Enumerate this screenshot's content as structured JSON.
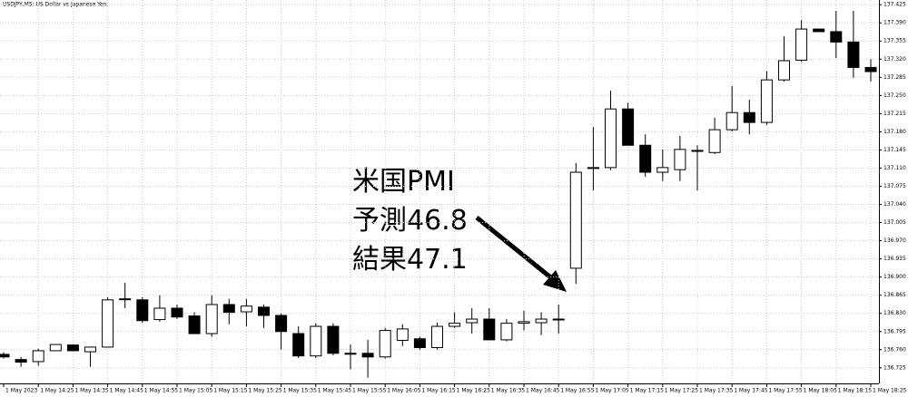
{
  "chart_data": {
    "type": "candlestick",
    "title": "USDJPY,M5:  US Dollar vs Japanese Yen",
    "categories": [
      "1 May 2023",
      null,
      "1 May 14:25",
      null,
      "1 May 14:35",
      null,
      "1 May 14:45",
      null,
      "1 May 14:55",
      null,
      "1 May 15:05",
      null,
      "1 May 15:15",
      null,
      "1 May 15:25",
      null,
      "1 May 15:35",
      null,
      "1 May 15:45",
      null,
      "1 May 15:55",
      null,
      "1 May 16:05",
      null,
      "1 May 16:15",
      null,
      "1 May 16:25",
      null,
      "1 May 16:35",
      null,
      "1 May 16:45",
      null,
      "1 May 16:55",
      null,
      "1 May 17:05",
      null,
      "1 May 17:15",
      null,
      "1 May 17:25",
      null,
      "1 May 17:35",
      null,
      "1 May 17:45",
      null,
      "1 May 17:55",
      null,
      "1 May 18:05",
      null,
      "1 May 18:15",
      null,
      "1 May 18:25"
    ],
    "open": [
      136.751,
      136.741,
      136.737,
      136.758,
      136.769,
      136.756,
      136.765,
      136.858,
      136.856,
      136.818,
      136.84,
      136.825,
      136.791,
      136.847,
      136.833,
      136.842,
      136.826,
      136.791,
      136.748,
      136.805,
      136.753,
      136.753,
      136.746,
      136.778,
      136.781,
      136.764,
      136.805,
      136.812,
      136.819,
      136.779,
      136.811,
      136.812,
      136.819,
      136.917,
      137.111,
      137.111,
      137.224,
      137.154,
      137.102,
      137.107,
      137.144,
      137.14,
      137.184,
      137.217,
      137.198,
      137.28,
      137.318,
      137.378,
      137.373,
      137.353,
      137.304
    ],
    "high": [
      136.755,
      136.746,
      136.762,
      136.77,
      136.77,
      136.765,
      136.861,
      136.889,
      136.861,
      136.865,
      136.847,
      136.832,
      136.865,
      136.858,
      136.858,
      136.847,
      136.83,
      136.805,
      136.811,
      136.811,
      136.77,
      136.779,
      136.802,
      136.809,
      136.785,
      136.812,
      136.832,
      136.84,
      136.84,
      136.819,
      136.835,
      136.832,
      136.847,
      137.12,
      137.189,
      137.259,
      137.236,
      137.175,
      137.146,
      137.172,
      137.154,
      137.207,
      137.268,
      137.242,
      137.297,
      137.364,
      137.395,
      137.378,
      137.413,
      137.413,
      137.32
    ],
    "low": [
      136.743,
      136.727,
      136.729,
      136.758,
      136.758,
      136.727,
      136.765,
      136.84,
      136.812,
      136.814,
      136.819,
      136.791,
      136.785,
      136.809,
      136.805,
      136.802,
      136.76,
      136.744,
      136.744,
      136.749,
      136.722,
      136.706,
      136.743,
      136.767,
      136.76,
      136.76,
      136.802,
      136.791,
      136.778,
      136.776,
      136.797,
      136.788,
      136.791,
      136.887,
      137.067,
      137.106,
      137.154,
      137.093,
      137.085,
      137.085,
      137.067,
      137.137,
      137.181,
      137.175,
      137.193,
      137.277,
      137.315,
      137.373,
      137.322,
      137.284,
      137.277
    ],
    "close": [
      136.746,
      136.736,
      136.758,
      136.77,
      136.758,
      136.765,
      136.856,
      136.858,
      136.816,
      136.84,
      136.823,
      136.791,
      136.847,
      136.832,
      136.844,
      136.826,
      136.795,
      136.748,
      136.805,
      136.753,
      136.753,
      136.746,
      136.797,
      136.8,
      136.764,
      136.805,
      136.811,
      136.819,
      136.779,
      136.811,
      136.814,
      136.819,
      136.819,
      137.102,
      137.111,
      137.224,
      137.154,
      137.102,
      137.111,
      137.146,
      137.144,
      137.184,
      137.217,
      137.198,
      137.28,
      137.317,
      137.378,
      137.373,
      137.353,
      137.304,
      137.296
    ],
    "up_color": "#ffffff",
    "down_color": "#000000",
    "ylim": [
      136.695,
      137.434
    ],
    "yticks": [
      136.725,
      {
        "value": 136.76,
        "label": "136.760"
      },
      136.795,
      {
        "value": 136.83,
        "label": "136.830"
      },
      136.865,
      {
        "value": 136.9,
        "label": "136.900"
      },
      136.935,
      {
        "value": 136.97,
        "label": "136.970"
      },
      137.005,
      {
        "value": 137.04,
        "label": "137.040"
      },
      137.075,
      {
        "value": 137.11,
        "label": "137.110"
      },
      137.145,
      {
        "value": 137.18,
        "label": "137.180"
      },
      137.215,
      {
        "value": 137.25,
        "label": "137.250"
      },
      137.285,
      {
        "value": 137.32,
        "label": "137.320"
      },
      137.355,
      {
        "value": 137.39,
        "label": "137.390"
      },
      137.425
    ],
    "grid": true,
    "annotations": [
      "米国PMI",
      "予測46.8",
      "結果47.1"
    ]
  }
}
